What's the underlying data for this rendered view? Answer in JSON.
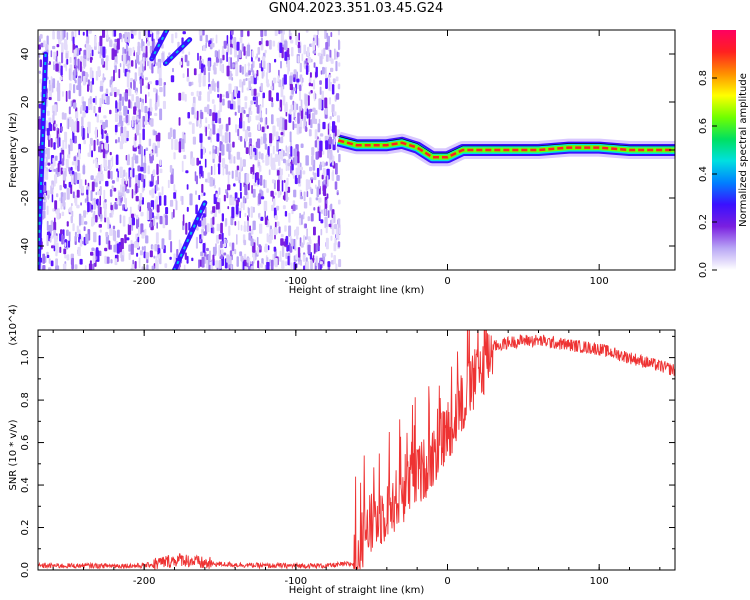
{
  "title": "GN04.2023.351.03.45.G24",
  "chart_data": [
    {
      "type": "heatmap",
      "xlabel": "Height of straight line (km)",
      "ylabel": "Frequency (Hz)",
      "xlim": [
        -270,
        150
      ],
      "ylim": [
        -50,
        50
      ],
      "xticks": [
        -200,
        -100,
        0,
        100
      ],
      "yticks": [
        -40,
        -20,
        0,
        20,
        40
      ],
      "colorbar": {
        "label": "Normalized spectral amplitude",
        "range": [
          0,
          1
        ],
        "ticks": [
          "0.0",
          "0.2",
          "0.4",
          "0.6",
          "0.8"
        ],
        "tick_values": [
          0.0,
          0.2,
          0.4,
          0.6,
          0.8
        ],
        "colormap": [
          "#ffffff",
          "#b9a6f5",
          "#7a1fe0",
          "#3a10ff",
          "#0080ff",
          "#00e0e0",
          "#00e060",
          "#70ff00",
          "#ffff00",
          "#ff9000",
          "#ff2020",
          "#ff0060"
        ]
      },
      "features": {
        "noise_region_x": [
          -270,
          -72
        ],
        "signal_band": [
          [
            -72,
            4
          ],
          [
            -60,
            2
          ],
          [
            -40,
            2
          ],
          [
            -30,
            3
          ],
          [
            -20,
            1
          ],
          [
            -10,
            -3
          ],
          [
            0,
            -3
          ],
          [
            10,
            0
          ],
          [
            40,
            0
          ],
          [
            60,
            0
          ],
          [
            80,
            1
          ],
          [
            100,
            1
          ],
          [
            120,
            0
          ],
          [
            150,
            0
          ]
        ],
        "diagonal_tracks": [
          [
            [
              -185,
              50
            ],
            [
              -195,
              38
            ]
          ],
          [
            [
              -170,
              46
            ],
            [
              -186,
              36
            ]
          ],
          [
            [
              -160,
              -22
            ],
            [
              -180,
              -50
            ]
          ],
          [
            [
              -265,
              40
            ],
            [
              -270,
              -50
            ]
          ]
        ]
      }
    },
    {
      "type": "line",
      "xlabel": "Height of straight line (km)",
      "ylabel": "SNR (10 * v/v)",
      "y_multiplier": "(x10^4)",
      "xlim": [
        -270,
        150
      ],
      "ylim": [
        0,
        1.13
      ],
      "xticks": [
        -200,
        -100,
        0,
        100
      ],
      "yticks": [
        "0.0",
        "0.2",
        "0.4",
        "0.6",
        "0.8",
        "1.0"
      ],
      "ytick_values": [
        0.0,
        0.2,
        0.4,
        0.6,
        0.8,
        1.0
      ],
      "color": "#ee3333",
      "series": [
        {
          "x": [
            -270,
            -240,
            -200,
            -185,
            -175,
            -160,
            -120,
            -80,
            -62,
            -55,
            -45,
            -35,
            -25,
            -15,
            -5,
            0,
            10,
            20,
            30,
            40,
            50,
            60,
            70,
            80,
            90,
            100,
            110,
            120,
            130,
            140,
            150
          ],
          "y": [
            0.02,
            0.02,
            0.02,
            0.04,
            0.05,
            0.03,
            0.02,
            0.02,
            0.03,
            0.18,
            0.25,
            0.32,
            0.4,
            0.48,
            0.58,
            0.66,
            0.78,
            0.92,
            1.05,
            1.07,
            1.08,
            1.08,
            1.07,
            1.06,
            1.05,
            1.04,
            1.02,
            1.0,
            0.98,
            0.96,
            0.94
          ]
        }
      ]
    }
  ]
}
